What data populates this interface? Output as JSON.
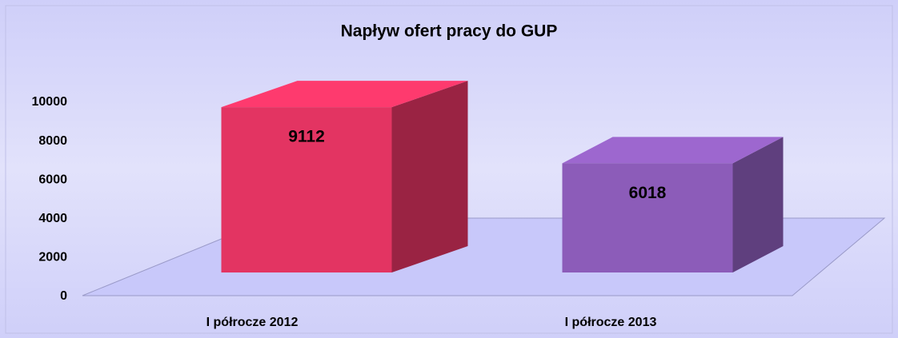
{
  "chart_data": {
    "type": "bar3d",
    "title": "Napływ ofert pracy do GUP",
    "categories": [
      "I półrocze 2012",
      "I półrocze 2013"
    ],
    "values": [
      9112,
      6018
    ],
    "colors": [
      "#e33462",
      "#8c5cb9"
    ],
    "ylim": [
      0,
      10000
    ],
    "yticks": [
      0,
      2000,
      4000,
      6000,
      8000,
      10000
    ]
  }
}
